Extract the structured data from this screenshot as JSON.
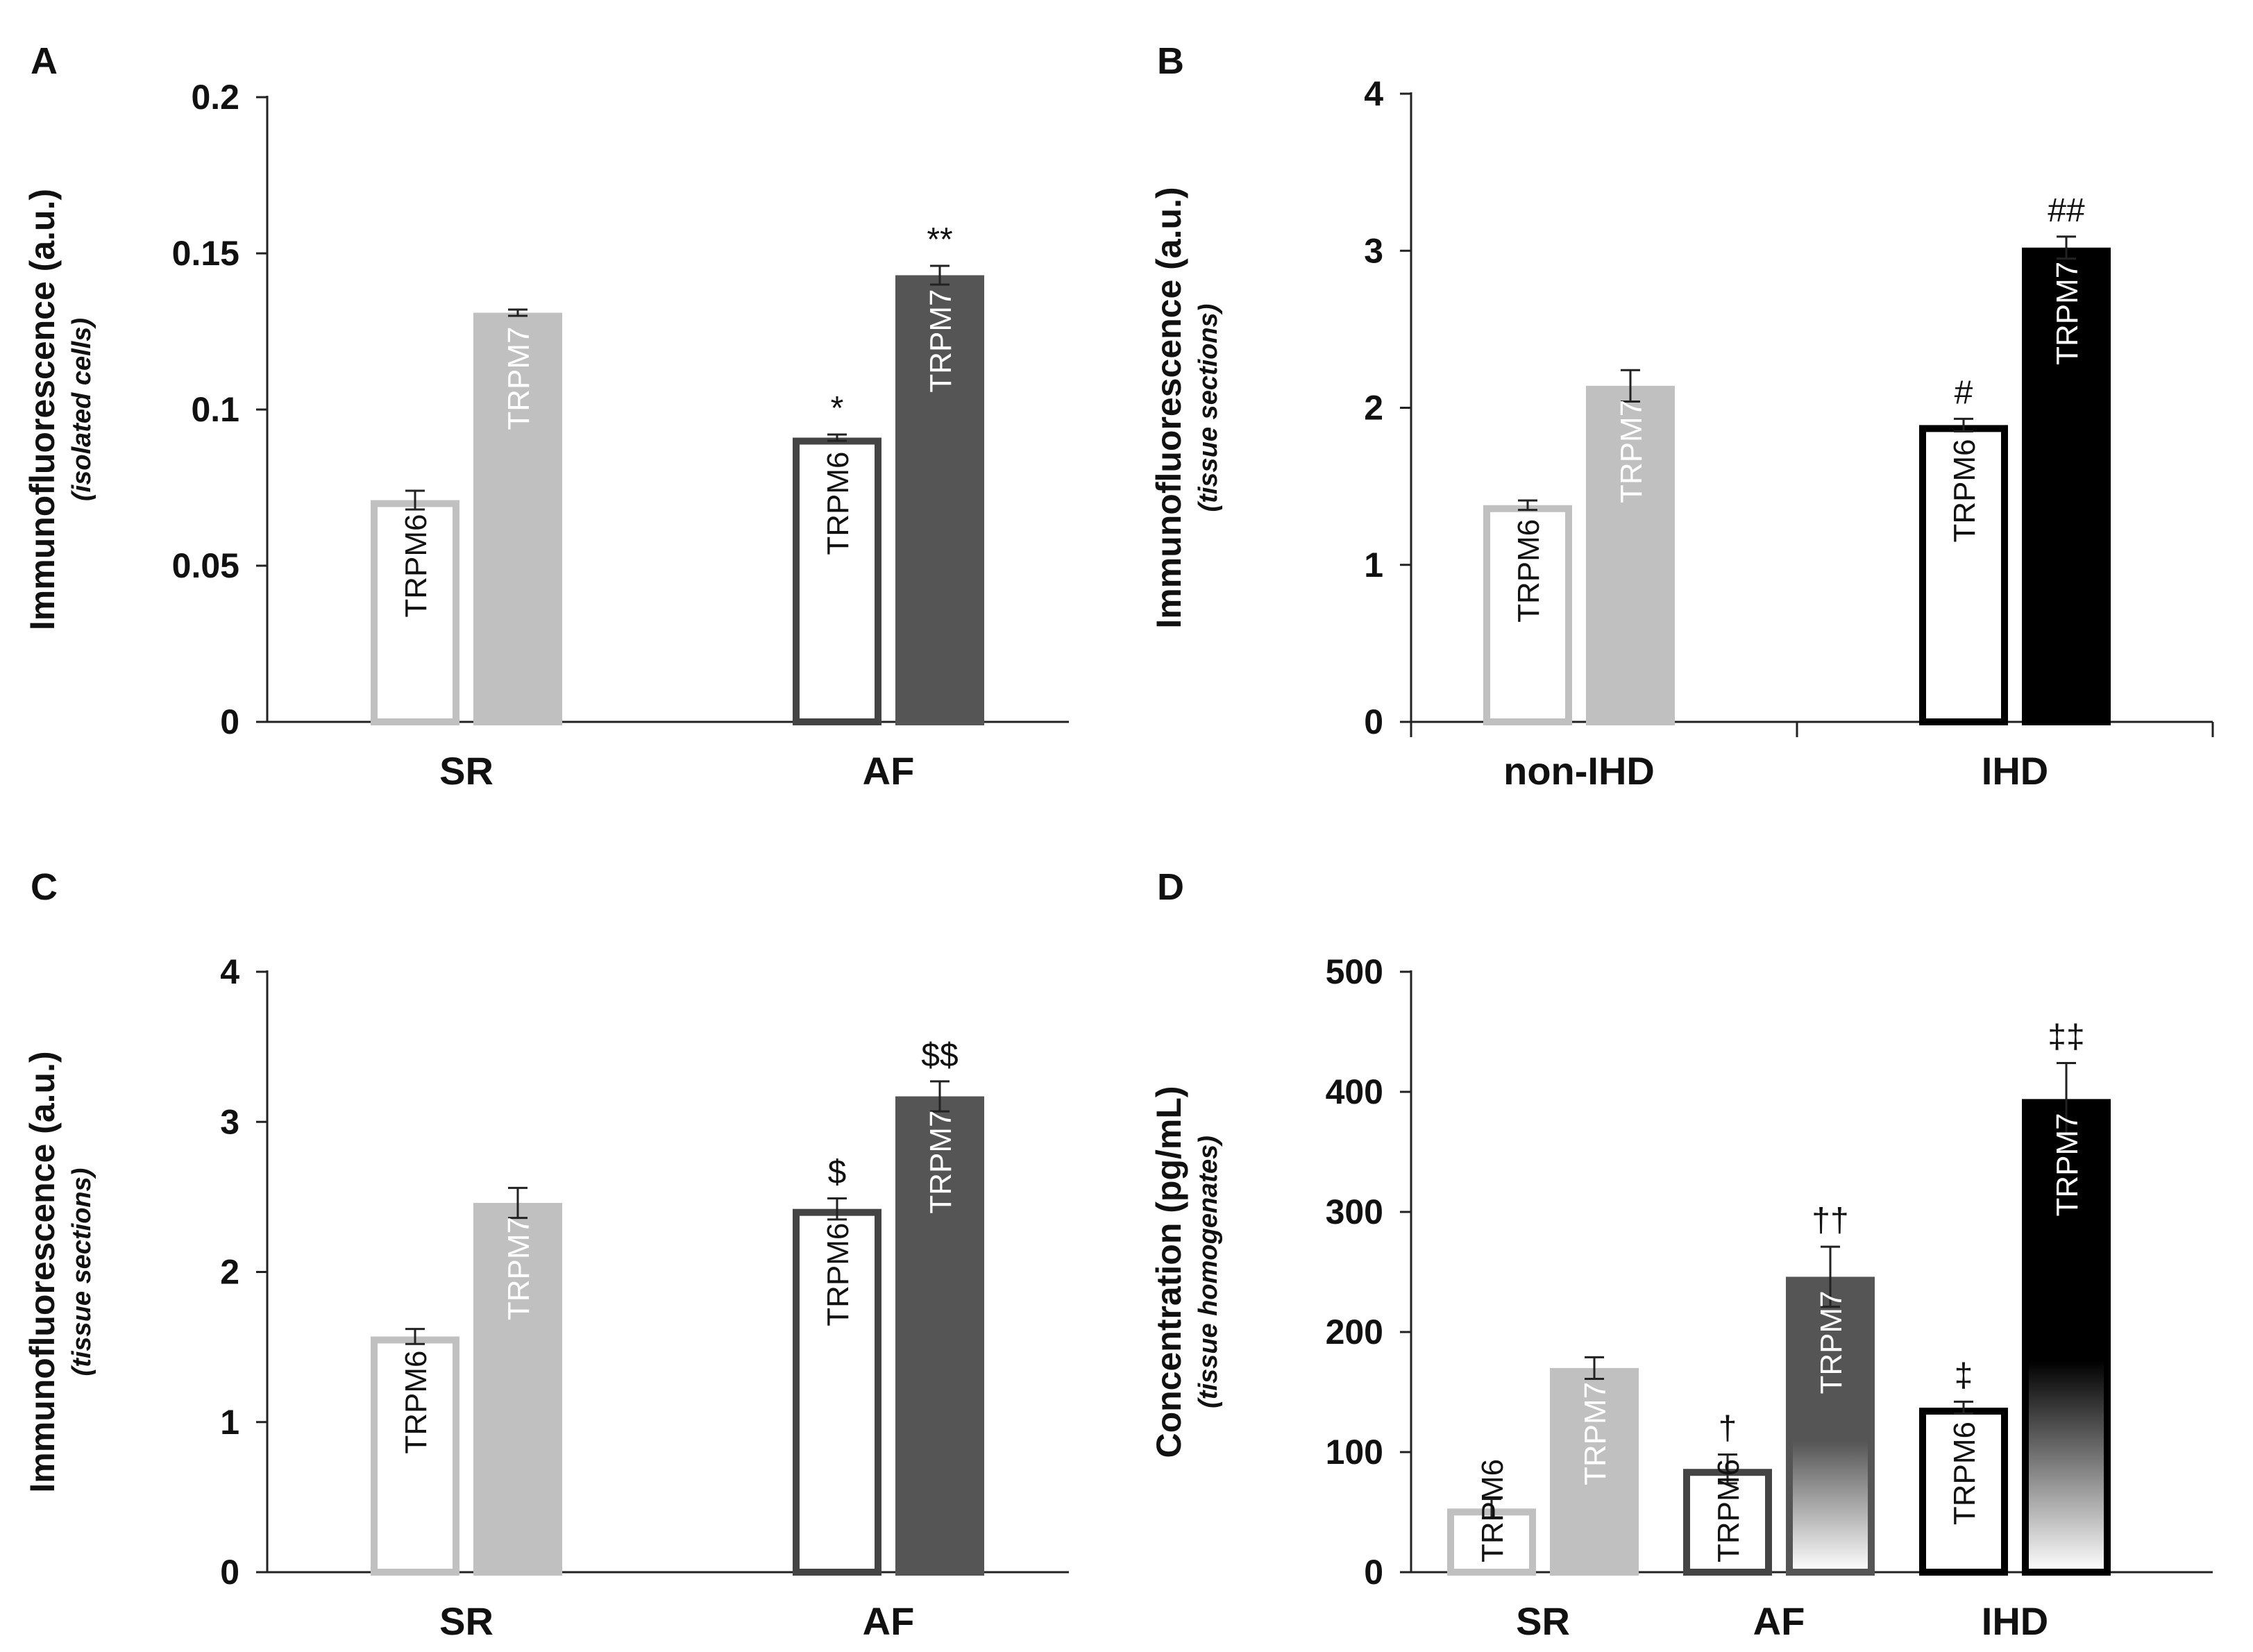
{
  "chart_data": [
    {
      "panel": "A",
      "type": "bar",
      "ylabel": "Immunofluorescence (a.u.)",
      "ylabel_sub": "(isolated cells)",
      "ylim": [
        0,
        0.2
      ],
      "yticks": [
        "0",
        "0.05",
        "0.1",
        "0.15",
        "0.2"
      ],
      "ytick_values": [
        0,
        0.05,
        0.1,
        0.15,
        0.2
      ],
      "categories": [
        "SR",
        "AF"
      ],
      "axis_dividers": false,
      "series": [
        {
          "name": "TRPM6",
          "values": [
            0.071,
            0.091
          ],
          "errors": [
            0.003,
            0.001
          ],
          "annotations": [
            "",
            "*"
          ]
        },
        {
          "name": "TRPM7",
          "values": [
            0.131,
            0.143
          ],
          "errors": [
            0.001,
            0.003
          ],
          "annotations": [
            "",
            "**"
          ]
        }
      ],
      "styles": [
        [
          {
            "border": "#c0c0c0",
            "fill": "#ffffff",
            "text": "#111111"
          },
          {
            "border": "#c0c0c0",
            "fill": "#c0c0c0",
            "text": "#ffffff"
          }
        ],
        [
          {
            "border": "#444444",
            "fill": "#ffffff",
            "text": "#111111"
          },
          {
            "border": "#555555",
            "fill": "#555555",
            "text": "#ffffff"
          }
        ]
      ]
    },
    {
      "panel": "B",
      "type": "bar",
      "ylabel": "Immunofluorescence (a.u.)",
      "ylabel_sub": "(tissue sections)",
      "ylim": [
        0,
        4
      ],
      "yticks": [
        "0",
        "1",
        "2",
        "3",
        "4"
      ],
      "ytick_values": [
        0,
        1,
        2,
        3,
        4
      ],
      "categories": [
        "non-IHD",
        "IHD"
      ],
      "axis_dividers": true,
      "series": [
        {
          "name": "TRPM6",
          "values": [
            1.38,
            1.89
          ],
          "errors": [
            0.03,
            0.04
          ],
          "annotations": [
            "",
            "#"
          ]
        },
        {
          "name": "TRPM7",
          "values": [
            2.14,
            3.02
          ],
          "errors": [
            0.1,
            0.07
          ],
          "annotations": [
            "",
            "##"
          ]
        }
      ],
      "styles": [
        [
          {
            "border": "#c0c0c0",
            "fill": "#ffffff",
            "text": "#111111"
          },
          {
            "border": "#c0c0c0",
            "fill": "#c0c0c0",
            "text": "#ffffff"
          }
        ],
        [
          {
            "border": "#000000",
            "fill": "#ffffff",
            "text": "#111111"
          },
          {
            "border": "#000000",
            "fill": "#000000",
            "text": "#ffffff"
          }
        ]
      ]
    },
    {
      "panel": "C",
      "type": "bar",
      "ylabel": "Immunofluorescence (a.u.)",
      "ylabel_sub": "(tissue sections)",
      "ylim": [
        0,
        4
      ],
      "yticks": [
        "0",
        "1",
        "2",
        "3",
        "4"
      ],
      "ytick_values": [
        0,
        1,
        2,
        3,
        4
      ],
      "categories": [
        "SR",
        "AF"
      ],
      "axis_dividers": false,
      "series": [
        {
          "name": "TRPM6",
          "values": [
            1.57,
            2.42
          ],
          "errors": [
            0.05,
            0.07
          ],
          "annotations": [
            "",
            "$"
          ]
        },
        {
          "name": "TRPM7",
          "values": [
            2.46,
            3.17
          ],
          "errors": [
            0.1,
            0.1
          ],
          "annotations": [
            "",
            "$$"
          ]
        }
      ],
      "styles": [
        [
          {
            "border": "#c0c0c0",
            "fill": "#ffffff",
            "text": "#111111"
          },
          {
            "border": "#c0c0c0",
            "fill": "#c0c0c0",
            "text": "#ffffff"
          }
        ],
        [
          {
            "border": "#444444",
            "fill": "#ffffff",
            "text": "#111111"
          },
          {
            "border": "#555555",
            "fill": "#555555",
            "text": "#ffffff"
          }
        ]
      ]
    },
    {
      "panel": "D",
      "type": "bar",
      "ylabel": "Concentration (pg/mL)",
      "ylabel_sub": "(tissue homogenates)",
      "ylim": [
        0,
        500
      ],
      "yticks": [
        "0",
        "100",
        "200",
        "300",
        "400",
        "500"
      ],
      "ytick_values": [
        0,
        100,
        200,
        300,
        400,
        500
      ],
      "categories": [
        "SR",
        "AF",
        "IHD"
      ],
      "axis_dividers": false,
      "series": [
        {
          "name": "TRPM6",
          "values": [
            53,
            86,
            137
          ],
          "errors": [
            8,
            12,
            5
          ],
          "annotations": [
            "",
            "†",
            "‡"
          ]
        },
        {
          "name": "TRPM7",
          "values": [
            170,
            246,
            394
          ],
          "errors": [
            9,
            25,
            30
          ],
          "annotations": [
            "",
            "††",
            "‡‡"
          ]
        }
      ],
      "styles": [
        [
          {
            "border": "#c0c0c0",
            "fill": "#ffffff",
            "text": "#111111"
          },
          {
            "border": "#c0c0c0",
            "fill": "#c0c0c0",
            "text": "#ffffff"
          }
        ],
        [
          {
            "border": "#444444",
            "fill": "#ffffff",
            "text": "#111111"
          },
          {
            "border": "#555555",
            "fill": "#555555",
            "text": "#ffffff",
            "fade": true
          }
        ],
        [
          {
            "border": "#000000",
            "fill": "#ffffff",
            "text": "#111111"
          },
          {
            "border": "#000000",
            "fill": "#000000",
            "text": "#ffffff",
            "fade": true
          }
        ]
      ]
    }
  ],
  "panels": {
    "a": {
      "letter": "A"
    },
    "b": {
      "letter": "B"
    },
    "c": {
      "letter": "C"
    },
    "d": {
      "letter": "D"
    }
  }
}
